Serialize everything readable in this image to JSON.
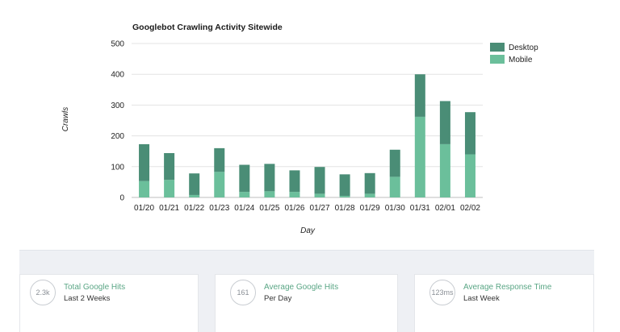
{
  "chart_data": {
    "type": "bar",
    "stacked": true,
    "title": "Googlebot Crawling Activity Sitewide",
    "xlabel": "Day",
    "ylabel": "Crawls",
    "ylim": [
      0,
      500
    ],
    "yticks": [
      0,
      100,
      200,
      300,
      400,
      500
    ],
    "grid": true,
    "legend_position": "top-right",
    "categories": [
      "01/20",
      "01/21",
      "01/22",
      "01/23",
      "01/24",
      "01/25",
      "01/26",
      "01/27",
      "01/28",
      "01/29",
      "01/30",
      "01/31",
      "02/01",
      "02/02"
    ],
    "series": [
      {
        "name": "Mobile",
        "color": "#6bbf9b",
        "values": [
          53,
          57,
          8,
          83,
          18,
          20,
          18,
          12,
          5,
          12,
          67,
          262,
          173,
          140
        ]
      },
      {
        "name": "Desktop",
        "color": "#4a8d76",
        "values": [
          120,
          87,
          70,
          77,
          88,
          89,
          70,
          87,
          70,
          67,
          88,
          138,
          140,
          137
        ]
      }
    ]
  },
  "stats": [
    {
      "badge": "2.3k",
      "title": "Total Google Hits",
      "subtitle": "Last 2 Weeks"
    },
    {
      "badge": "161",
      "title": "Average Google Hits",
      "subtitle": "Per Day"
    },
    {
      "badge": "123ms",
      "title": "Average Response Time",
      "subtitle": "Last Week"
    }
  ]
}
